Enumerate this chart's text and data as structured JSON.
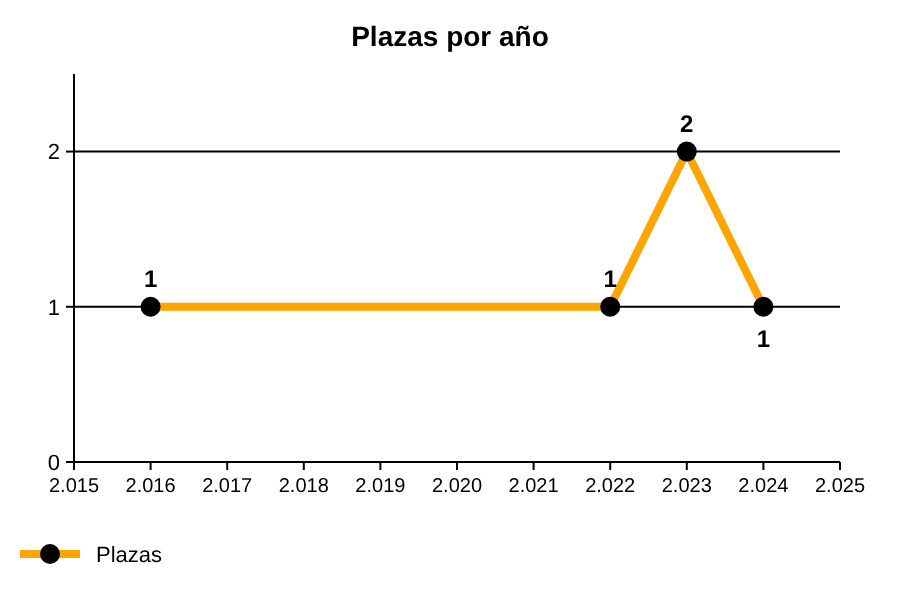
{
  "chart_data": {
    "type": "line",
    "title": "Plazas por año",
    "x": [
      2016,
      2022,
      2023,
      2024
    ],
    "series": [
      {
        "name": "Plazas",
        "color": "#ffa500",
        "values": [
          1,
          1,
          2,
          1
        ]
      }
    ],
    "xlim": [
      2015,
      2025
    ],
    "xticks": [
      {
        "value": 2015,
        "label": "2.015"
      },
      {
        "value": 2016,
        "label": "2.016"
      },
      {
        "value": 2017,
        "label": "2.017"
      },
      {
        "value": 2018,
        "label": "2.018"
      },
      {
        "value": 2019,
        "label": "2.019"
      },
      {
        "value": 2020,
        "label": "2.020"
      },
      {
        "value": 2021,
        "label": "2.021"
      },
      {
        "value": 2022,
        "label": "2.022"
      },
      {
        "value": 2023,
        "label": "2.023"
      },
      {
        "value": 2024,
        "label": "2.024"
      },
      {
        "value": 2025,
        "label": "2.025"
      }
    ],
    "ylim": [
      0,
      2.5
    ],
    "yticks": [
      0,
      1,
      2
    ],
    "grid": "y",
    "marker": "circle",
    "line_style": "solid",
    "data_labels": true,
    "legend": "bottom left"
  }
}
